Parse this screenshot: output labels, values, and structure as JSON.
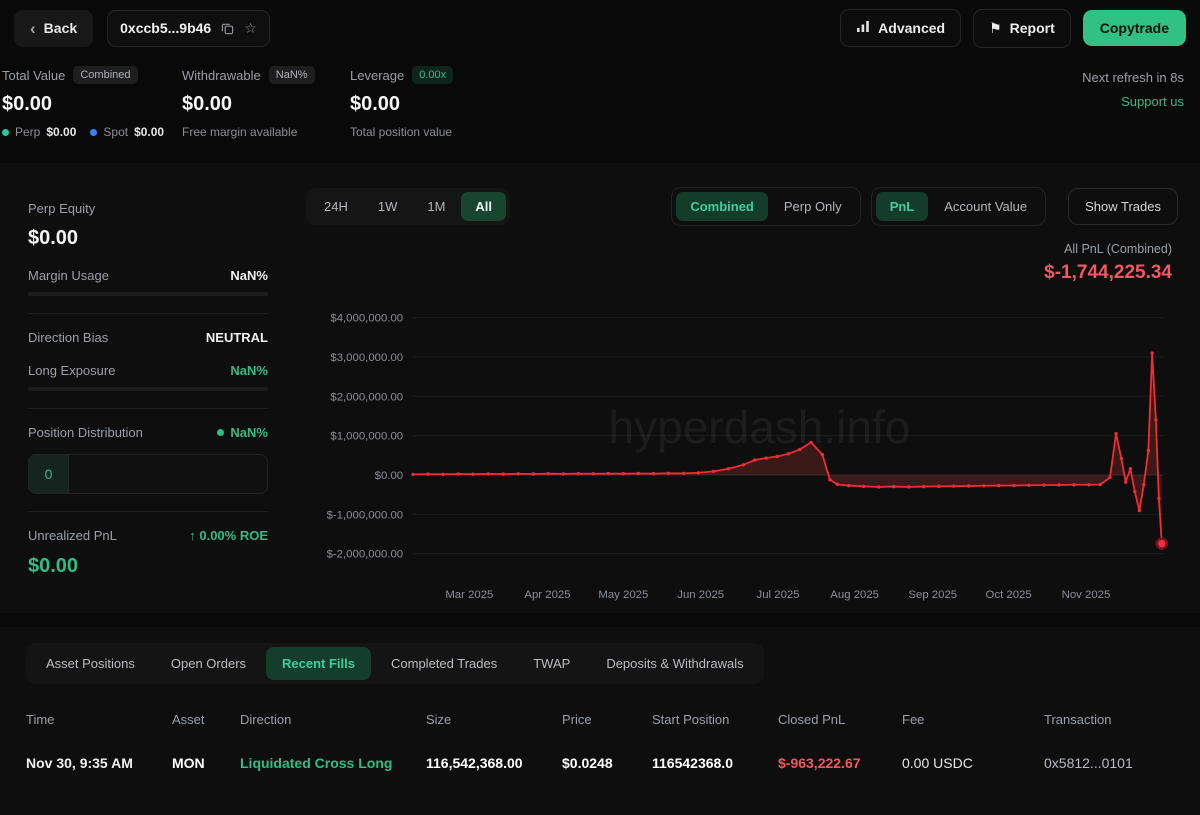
{
  "topbar": {
    "back_label": "Back",
    "address": "0xccb5...9b46",
    "advanced_label": "Advanced",
    "report_label": "Report",
    "copytrade_label": "Copytrade"
  },
  "stats": {
    "total": {
      "label": "Total Value",
      "badge": "Combined",
      "value": "$0.00",
      "perp_label": "Perp",
      "perp_value": "$0.00",
      "spot_label": "Spot",
      "spot_value": "$0.00"
    },
    "withdrawable": {
      "label": "Withdrawable",
      "badge": "NaN%",
      "value": "$0.00",
      "sub": "Free margin available"
    },
    "leverage": {
      "label": "Leverage",
      "badge": "0.00x",
      "value": "$0.00",
      "sub": "Total position value"
    },
    "refresh": "Next refresh in 8s",
    "support": "Support us"
  },
  "sidebar": {
    "perp_equity": {
      "label": "Perp Equity",
      "value": "$0.00"
    },
    "margin_usage": {
      "label": "Margin Usage",
      "value": "NaN%"
    },
    "direction_bias": {
      "label": "Direction Bias",
      "value": "NEUTRAL"
    },
    "long_exposure": {
      "label": "Long Exposure",
      "value": "NaN%"
    },
    "position_distribution": {
      "label": "Position Distribution",
      "value": "NaN%",
      "count": "0"
    },
    "unrealized": {
      "label": "Unrealized PnL",
      "roe": "↑ 0.00% ROE",
      "value": "$0.00"
    }
  },
  "chart": {
    "ranges": [
      "24H",
      "1W",
      "1M",
      "All"
    ],
    "active_range": "All",
    "modes": [
      "Combined",
      "Perp Only"
    ],
    "active_mode": "Combined",
    "views": [
      "PnL",
      "Account Value"
    ],
    "active_view": "PnL",
    "show_trades": "Show Trades",
    "summary_label": "All PnL (Combined)",
    "summary_value": "$-1,744,225.34",
    "watermark": "hyperdash.info"
  },
  "chart_data": {
    "type": "line",
    "title": "All PnL (Combined)",
    "final_value": -1744225.34,
    "line_color": "#f02c34",
    "area_color": "rgba(239,68,68,0.20)",
    "ylim": [
      -2400000,
      4400000
    ],
    "y_ticks": [
      4000000,
      3000000,
      2000000,
      1000000,
      0,
      -1000000,
      -2000000
    ],
    "y_tick_labels": [
      "$4,000,000.00",
      "$3,000,000.00",
      "$2,000,000.00",
      "$1,000,000.00",
      "$0.00",
      "$-1,000,000.00",
      "$-2,000,000.00"
    ],
    "x_tick_labels": [
      "Mar 2025",
      "Apr 2025",
      "May 2025",
      "Jun 2025",
      "Jul 2025",
      "Aug 2025",
      "Sep 2025",
      "Oct 2025",
      "Nov 2025"
    ],
    "x_tick_pct": [
      7.5,
      17.9,
      28.0,
      38.3,
      48.6,
      58.8,
      69.2,
      79.3,
      89.6
    ],
    "points": [
      [
        0,
        15000
      ],
      [
        2,
        22000
      ],
      [
        4,
        18000
      ],
      [
        6,
        26000
      ],
      [
        8,
        21000
      ],
      [
        10,
        28000
      ],
      [
        12,
        24000
      ],
      [
        14,
        30000
      ],
      [
        16,
        26000
      ],
      [
        18,
        32000
      ],
      [
        20,
        28000
      ],
      [
        22,
        34000
      ],
      [
        24,
        30000
      ],
      [
        26,
        36000
      ],
      [
        28,
        32000
      ],
      [
        30,
        38000
      ],
      [
        32,
        36000
      ],
      [
        34,
        42000
      ],
      [
        36,
        40000
      ],
      [
        38,
        55000
      ],
      [
        40,
        90000
      ],
      [
        42,
        160000
      ],
      [
        44,
        260000
      ],
      [
        45.5,
        380000
      ],
      [
        47,
        430000
      ],
      [
        48.5,
        470000
      ],
      [
        50,
        540000
      ],
      [
        51.5,
        650000
      ],
      [
        53,
        830000
      ],
      [
        54.5,
        520000
      ],
      [
        55.5,
        -120000
      ],
      [
        56.5,
        -240000
      ],
      [
        58,
        -270000
      ],
      [
        60,
        -290000
      ],
      [
        62,
        -305000
      ],
      [
        64,
        -295000
      ],
      [
        66,
        -305000
      ],
      [
        68,
        -295000
      ],
      [
        70,
        -290000
      ],
      [
        72,
        -285000
      ],
      [
        74,
        -280000
      ],
      [
        76,
        -275000
      ],
      [
        78,
        -270000
      ],
      [
        80,
        -268000
      ],
      [
        82,
        -262000
      ],
      [
        84,
        -258000
      ],
      [
        86,
        -255000
      ],
      [
        88,
        -250000
      ],
      [
        90,
        -248000
      ],
      [
        91.5,
        -245000
      ],
      [
        92.8,
        -60000
      ],
      [
        93.6,
        1050000
      ],
      [
        94.3,
        420000
      ],
      [
        94.9,
        -180000
      ],
      [
        95.5,
        160000
      ],
      [
        96.1,
        -420000
      ],
      [
        96.7,
        -905000
      ],
      [
        97.3,
        -250000
      ],
      [
        97.9,
        620000
      ],
      [
        98.4,
        3100000
      ],
      [
        98.9,
        1400000
      ],
      [
        99.3,
        -600000
      ],
      [
        99.7,
        -1744225
      ]
    ]
  },
  "tabs": {
    "items": [
      "Asset Positions",
      "Open Orders",
      "Recent Fills",
      "Completed Trades",
      "TWAP",
      "Deposits & Withdrawals"
    ],
    "active": "Recent Fills"
  },
  "fills_table": {
    "headers": [
      "Time",
      "Asset",
      "Direction",
      "Size",
      "Price",
      "Start Position",
      "Closed PnL",
      "Fee",
      "Transaction"
    ],
    "rows": [
      {
        "time": "Nov 30, 9:35 AM",
        "asset": "MON",
        "direction": "Liquidated Cross Long",
        "size": "116,542,368.00",
        "price": "$0.0248",
        "start_position": "116542368.0",
        "closed_pnl": "$-963,222.67",
        "fee": "0.00 USDC",
        "transaction": "0x5812...0101"
      }
    ]
  }
}
